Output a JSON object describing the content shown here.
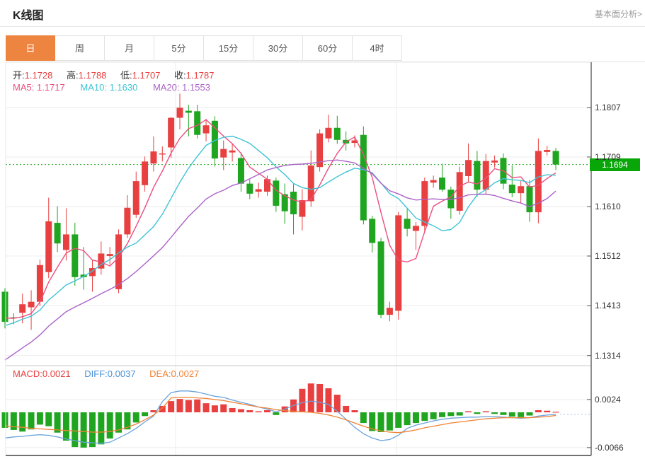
{
  "header": {
    "title": "K线图",
    "link": "基本面分析>"
  },
  "tabs": {
    "items": [
      "日",
      "周",
      "月",
      "5分",
      "15分",
      "30分",
      "60分",
      "4时"
    ],
    "selected": 0
  },
  "readout": {
    "ohlc": [
      {
        "label": "开:",
        "value": "1.1728"
      },
      {
        "label": "高:",
        "value": "1.1788"
      },
      {
        "label": "低:",
        "value": "1.1707"
      },
      {
        "label": "收:",
        "value": "1.1787"
      }
    ],
    "ma": [
      {
        "label": "MA5:",
        "value": "1.1717"
      },
      {
        "label": "MA10:",
        "value": "1.1630"
      },
      {
        "label": "MA20:",
        "value": "1.1553"
      }
    ]
  },
  "macd_readout": [
    {
      "label": "MACD:",
      "value": "0.0021"
    },
    {
      "label": "DIFF:",
      "value": "0.0037"
    },
    {
      "label": "DEA:",
      "value": "0.0027"
    }
  ],
  "colors": {
    "up": "#e84040",
    "down": "#1fa51f",
    "ma5": "#ec4e7e",
    "ma10": "#3ec3d5",
    "ma20": "#ab63c8",
    "diff_line": "#6aa3dc",
    "dea_line": "#f08234",
    "macd_text": "#e84040",
    "diff_text": "#4a90d8",
    "dea_text": "#f08234",
    "value_red": "#e84040",
    "badge": "#09a609",
    "last_price_line": "#1fa51f",
    "tab_active": "#ed8540",
    "grid": "#ececec",
    "axis": "#444444",
    "axis_text": "#333333"
  },
  "chart_data": {
    "type": "candlestick",
    "title": "K线图",
    "panes": [
      "price",
      "macd"
    ],
    "legend": [
      "MA5",
      "MA10",
      "MA20",
      "MACD",
      "DIFF",
      "DEA"
    ],
    "grid": true,
    "price_axis": {
      "ticks": [
        1.1807,
        1.1709,
        1.161,
        1.1512,
        1.1413,
        1.1314
      ],
      "top": 1.18975,
      "bottom": 1.12939
    },
    "macd_axis": {
      "ticks": [
        0.0024,
        -0.0066
      ],
      "top": 0.008738,
      "bottom": -0.008075
    },
    "last_price": 1.1694,
    "ma_periods": [
      5,
      10,
      20
    ],
    "ma_prehistory": [
      1.113,
      1.115,
      1.117,
      1.119,
      1.121,
      1.123,
      1.125,
      1.1268,
      1.1285,
      1.13,
      1.1315,
      1.133,
      1.1345,
      1.136,
      1.1372,
      1.1382,
      1.1392,
      1.14,
      1.139,
      1.138
    ],
    "candles": [
      [
        1.1441,
        1.1448,
        1.1368,
        1.1381
      ],
      [
        1.139,
        1.1398,
        1.1376,
        1.1389
      ],
      [
        1.1399,
        1.1437,
        1.1378,
        1.1416
      ],
      [
        1.141,
        1.1444,
        1.1365,
        1.1421
      ],
      [
        1.1421,
        1.1505,
        1.1412,
        1.1494
      ],
      [
        1.148,
        1.1628,
        1.1468,
        1.1581
      ],
      [
        1.1578,
        1.1611,
        1.152,
        1.1537
      ],
      [
        1.1524,
        1.1607,
        1.1503,
        1.1555
      ],
      [
        1.1555,
        1.1578,
        1.1453,
        1.147
      ],
      [
        1.1475,
        1.153,
        1.1445,
        1.147
      ],
      [
        1.1472,
        1.1505,
        1.1441,
        1.1488
      ],
      [
        1.1487,
        1.1541,
        1.1475,
        1.1517
      ],
      [
        1.1512,
        1.153,
        1.1495,
        1.1516
      ],
      [
        1.1446,
        1.1565,
        1.1438,
        1.1555
      ],
      [
        1.1555,
        1.1633,
        1.1548,
        1.1608
      ],
      [
        1.1594,
        1.168,
        1.1588,
        1.1661
      ],
      [
        1.1653,
        1.171,
        1.164,
        1.17
      ],
      [
        1.1696,
        1.175,
        1.168,
        1.172
      ],
      [
        1.1714,
        1.173,
        1.17,
        1.1716
      ],
      [
        1.1728,
        1.1788,
        1.1707,
        1.1787
      ],
      [
        1.1787,
        1.1835,
        1.1764,
        1.1807
      ],
      [
        1.1801,
        1.1813,
        1.175,
        1.1797
      ],
      [
        1.18,
        1.1813,
        1.1746,
        1.1753
      ],
      [
        1.1756,
        1.1785,
        1.174,
        1.1772
      ],
      [
        1.1781,
        1.179,
        1.169,
        1.1706
      ],
      [
        1.1708,
        1.1742,
        1.1683,
        1.1725
      ],
      [
        1.1718,
        1.1735,
        1.17,
        1.1722
      ],
      [
        1.1707,
        1.1718,
        1.164,
        1.1656
      ],
      [
        1.1656,
        1.1664,
        1.1625,
        1.1636
      ],
      [
        1.164,
        1.1658,
        1.1628,
        1.1645
      ],
      [
        1.164,
        1.1672,
        1.1632,
        1.1665
      ],
      [
        1.1662,
        1.1668,
        1.16,
        1.1612
      ],
      [
        1.1635,
        1.1656,
        1.1576,
        1.1601
      ],
      [
        1.164,
        1.1655,
        1.1555,
        1.1595
      ],
      [
        1.159,
        1.1645,
        1.1563,
        1.1623
      ],
      [
        1.1621,
        1.1722,
        1.161,
        1.1692
      ],
      [
        1.1689,
        1.1764,
        1.168,
        1.1756
      ],
      [
        1.1746,
        1.1793,
        1.1738,
        1.1767
      ],
      [
        1.1767,
        1.1791,
        1.1735,
        1.1743
      ],
      [
        1.1743,
        1.176,
        1.1722,
        1.1736
      ],
      [
        1.1737,
        1.1752,
        1.1728,
        1.1742
      ],
      [
        1.1753,
        1.177,
        1.1575,
        1.1583
      ],
      [
        1.1586,
        1.1592,
        1.1519,
        1.1538
      ],
      [
        1.1541,
        1.1548,
        1.1388,
        1.1395
      ],
      [
        1.1395,
        1.1421,
        1.1382,
        1.1409
      ],
      [
        1.1403,
        1.16,
        1.1385,
        1.1593
      ],
      [
        1.1586,
        1.1607,
        1.1551,
        1.1566
      ],
      [
        1.1562,
        1.158,
        1.1524,
        1.1572
      ],
      [
        1.1572,
        1.1668,
        1.156,
        1.1661
      ],
      [
        1.1658,
        1.1672,
        1.1648,
        1.1663
      ],
      [
        1.1668,
        1.1696,
        1.164,
        1.1644
      ],
      [
        1.1644,
        1.165,
        1.1586,
        1.1607
      ],
      [
        1.1602,
        1.169,
        1.1594,
        1.1679
      ],
      [
        1.1671,
        1.1736,
        1.166,
        1.1703
      ],
      [
        1.1701,
        1.1721,
        1.163,
        1.1644
      ],
      [
        1.1644,
        1.1715,
        1.1635,
        1.1701
      ],
      [
        1.1698,
        1.1712,
        1.1688,
        1.1702
      ],
      [
        1.1707,
        1.1716,
        1.1645,
        1.1656
      ],
      [
        1.1654,
        1.1692,
        1.1629,
        1.1637
      ],
      [
        1.1637,
        1.1661,
        1.1618,
        1.1651
      ],
      [
        1.1651,
        1.1663,
        1.158,
        1.1599
      ],
      [
        1.1599,
        1.1746,
        1.1577,
        1.1721
      ],
      [
        1.1719,
        1.1731,
        1.1712,
        1.1723
      ],
      [
        1.1721,
        1.1727,
        1.1683,
        1.1694
      ]
    ],
    "macd": {
      "hist": [
        -0.0029,
        -0.0033,
        -0.0036,
        -0.0032,
        -0.0023,
        -0.0026,
        -0.0038,
        -0.0053,
        -0.0065,
        -0.0066,
        -0.0065,
        -0.006,
        -0.0049,
        -0.0038,
        -0.0032,
        -0.0019,
        -0.0007,
        0.0004,
        0.0012,
        0.0021,
        0.0025,
        0.0023,
        0.0024,
        0.0017,
        0.0013,
        0.0015,
        0.0008,
        0.0006,
        0.0004,
        0.0002,
        0.0004,
        -0.0005,
        0.0011,
        0.0024,
        0.0044,
        0.0054,
        0.0053,
        0.0045,
        0.0033,
        0.0012,
        0.0004,
        -0.002,
        -0.0035,
        -0.0037,
        -0.0034,
        -0.0029,
        -0.0024,
        -0.002,
        -0.0016,
        -0.0013,
        -0.0009,
        -0.0007,
        -0.0006,
        0.0002,
        -0.0003,
        0.0002,
        -0.0003,
        -0.0005,
        -0.0008,
        -0.0009,
        -0.0006,
        0.0004,
        0.0003,
        0.0001
      ],
      "diff": [
        -0.0048,
        -0.0046,
        -0.0045,
        -0.0043,
        -0.0042,
        -0.0043,
        -0.0046,
        -0.005,
        -0.0053,
        -0.0056,
        -0.0057,
        -0.0058,
        -0.0056,
        -0.0048,
        -0.004,
        -0.003,
        -0.0018,
        -0.0007,
        0.002,
        0.0037,
        0.004,
        0.004,
        0.0038,
        0.0034,
        0.003,
        0.0028,
        0.0023,
        0.0019,
        0.0015,
        0.001,
        0.0006,
        0.0001,
        0.0006,
        0.0013,
        0.0018,
        0.0021,
        0.0019,
        0.0015,
        0.0002,
        -0.0013,
        -0.0028,
        -0.004,
        -0.0048,
        -0.0053,
        -0.0051,
        -0.0043,
        -0.003,
        -0.0024,
        -0.002,
        -0.0016,
        -0.0013,
        -0.0011,
        -0.001,
        -0.0009,
        -0.0009,
        -0.0008,
        -0.0008,
        -0.0009,
        -0.001,
        -0.0011,
        -0.001,
        -0.0007,
        -0.0005,
        -0.0004
      ],
      "dea": [
        -0.0025,
        -0.0027,
        -0.0028,
        -0.003,
        -0.0031,
        -0.0032,
        -0.0033,
        -0.0034,
        -0.0035,
        -0.0036,
        -0.0037,
        -0.0037,
        -0.0036,
        -0.0033,
        -0.0028,
        -0.0022,
        -0.0014,
        -0.0005,
        0.0008,
        0.0027,
        0.0028,
        0.0028,
        0.0027,
        0.0026,
        0.0024,
        0.0022,
        0.0019,
        0.0016,
        0.0013,
        0.001,
        0.0008,
        0.0005,
        0.0003,
        0.0002,
        0.0001,
        0.0,
        -0.0002,
        -0.0005,
        -0.0009,
        -0.0014,
        -0.002,
        -0.0026,
        -0.0031,
        -0.0035,
        -0.0037,
        -0.0038,
        -0.0036,
        -0.0033,
        -0.0029,
        -0.0026,
        -0.0023,
        -0.002,
        -0.0018,
        -0.0016,
        -0.0014,
        -0.0012,
        -0.0011,
        -0.001,
        -0.001,
        -0.001,
        -0.001,
        -0.0009,
        -0.0008,
        -0.0006
      ]
    }
  }
}
